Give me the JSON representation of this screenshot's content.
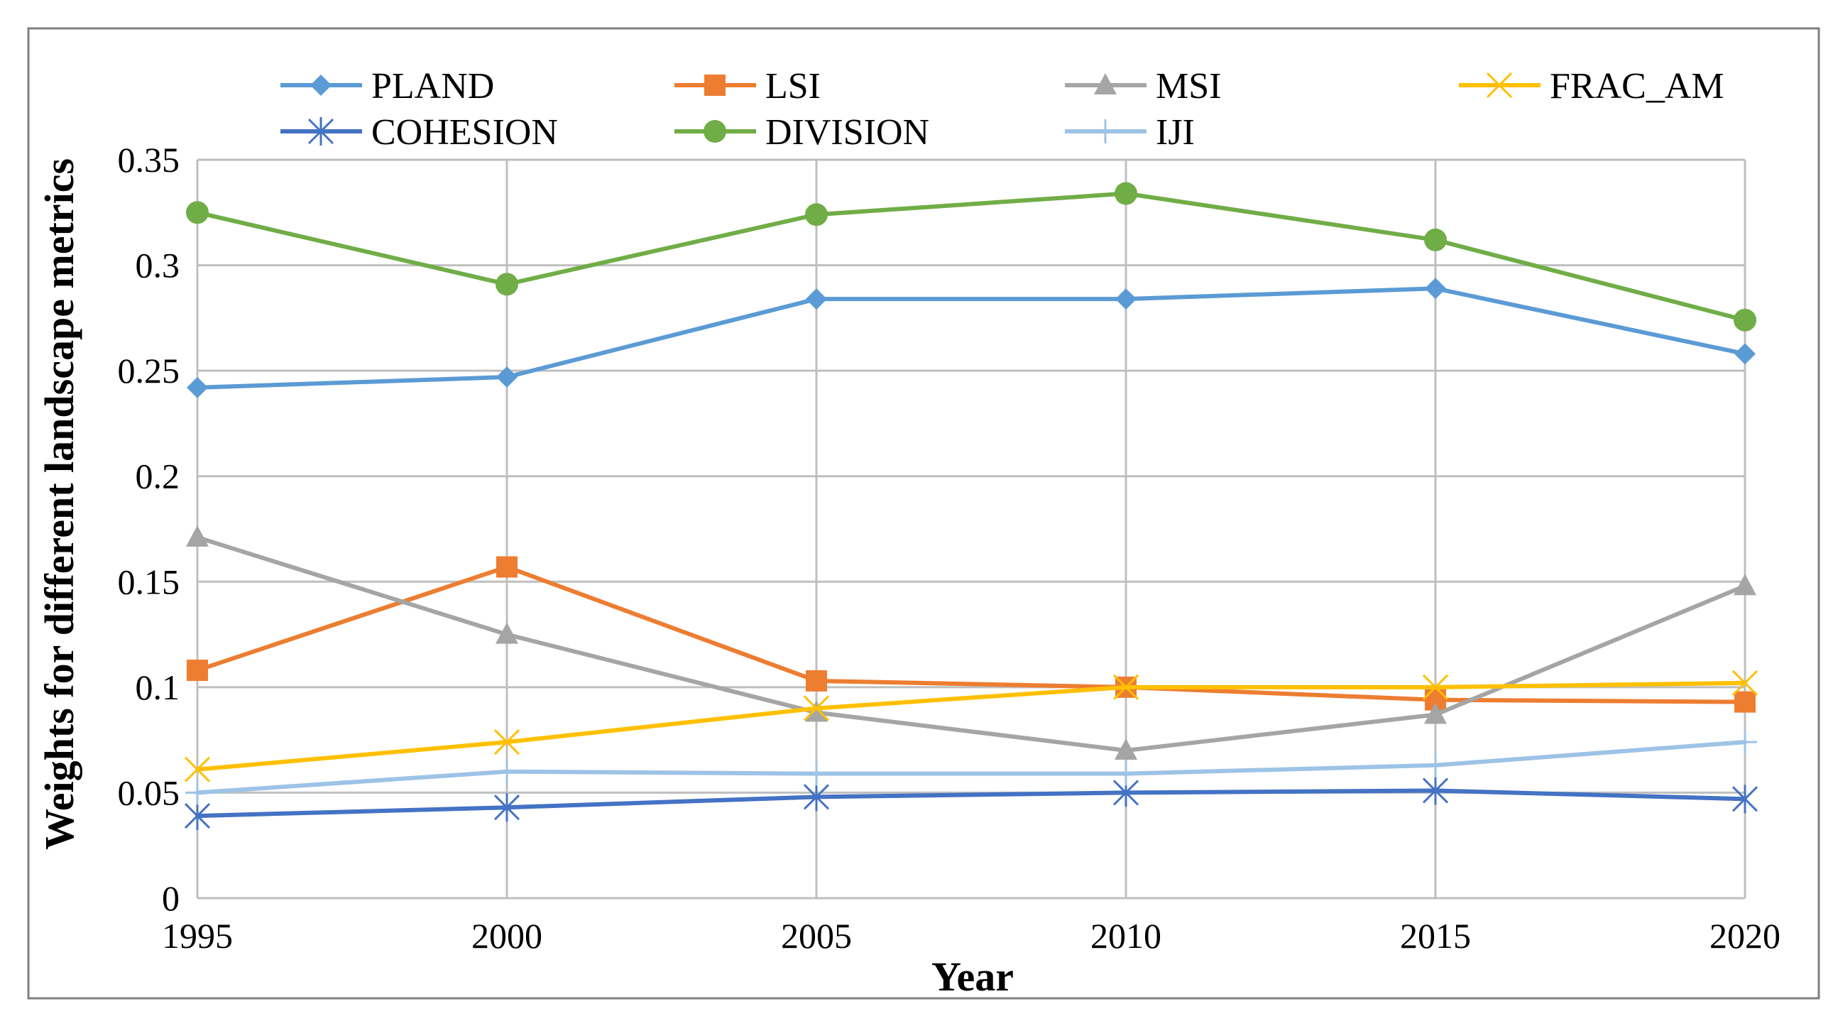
{
  "chart_data": {
    "type": "line",
    "title": "",
    "xlabel": "Year",
    "ylabel": "Weights for different landscape metrics",
    "x": [
      1995,
      2000,
      2005,
      2010,
      2015,
      2020
    ],
    "x_tick_labels": [
      "1995",
      "2000",
      "2005",
      "2010",
      "2015",
      "2020"
    ],
    "ylim": [
      0,
      0.35
    ],
    "y_ticks": [
      0,
      0.05,
      0.1,
      0.15,
      0.2,
      0.25,
      0.3,
      0.35
    ],
    "y_tick_labels": [
      "0",
      "0.05",
      "0.1",
      "0.15",
      "0.2",
      "0.25",
      "0.3",
      "0.35"
    ],
    "grid": true,
    "legend_position": "top",
    "series": [
      {
        "name": "PLAND",
        "color": "#5B9BD5",
        "marker": "diamond",
        "values": [
          0.242,
          0.247,
          0.284,
          0.284,
          0.289,
          0.258
        ]
      },
      {
        "name": "LSI",
        "color": "#ED7D31",
        "marker": "square",
        "values": [
          0.108,
          0.157,
          0.103,
          0.1,
          0.094,
          0.093
        ]
      },
      {
        "name": "MSI",
        "color": "#A5A5A5",
        "marker": "triangle",
        "values": [
          0.171,
          0.125,
          0.088,
          0.07,
          0.087,
          0.148
        ]
      },
      {
        "name": "FRAC_AM",
        "color": "#FFC000",
        "marker": "x",
        "values": [
          0.061,
          0.074,
          0.09,
          0.1,
          0.1,
          0.102
        ]
      },
      {
        "name": "COHESION",
        "color": "#4472C4",
        "marker": "asterisk",
        "values": [
          0.039,
          0.043,
          0.048,
          0.05,
          0.051,
          0.047
        ]
      },
      {
        "name": "DIVISION",
        "color": "#70AD47",
        "marker": "circle",
        "values": [
          0.325,
          0.291,
          0.324,
          0.334,
          0.312,
          0.274
        ]
      },
      {
        "name": "IJI",
        "color": "#9DC3E6",
        "marker": "plus",
        "values": [
          0.05,
          0.06,
          0.059,
          0.059,
          0.063,
          0.074
        ]
      }
    ]
  }
}
